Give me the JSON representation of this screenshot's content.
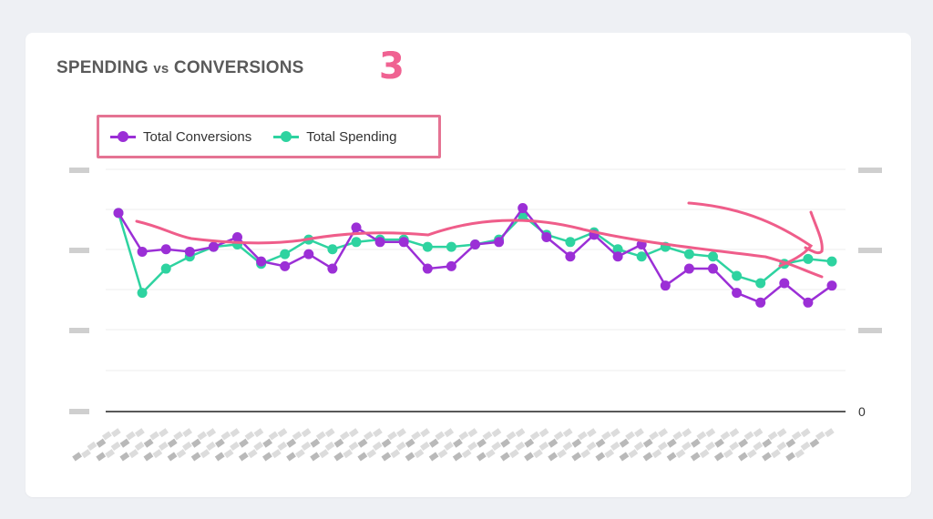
{
  "header": {
    "title_a": "SPENDING",
    "title_vs": "vs",
    "title_b": "CONVERSIONS",
    "step_badge": "3"
  },
  "colors": {
    "conversions": "#9b2fd6",
    "spending": "#2ed3a0",
    "annotation": "#ef5d8a",
    "legend_border": "#e57393"
  },
  "chart_data": {
    "type": "line",
    "title": "SPENDING vs CONVERSIONS",
    "legend_position": "top-left",
    "grid": true,
    "right_axis": {
      "tick_labels": [
        "0"
      ],
      "ylim": [
        0,
        100
      ]
    },
    "left_axis": {
      "ylim": [
        0,
        100
      ]
    },
    "series": [
      {
        "name": "Total Conversions",
        "color": "#9b2fd6",
        "axis": "left",
        "values": [
          82,
          66,
          67,
          66,
          68,
          72,
          62,
          60,
          65,
          59,
          76,
          70,
          70,
          59,
          60,
          69,
          70,
          84,
          72,
          64,
          73,
          64,
          69,
          52,
          59,
          59,
          49,
          45,
          53,
          45,
          52
        ]
      },
      {
        "name": "Total Spending",
        "color": "#2ed3a0",
        "axis": "right",
        "values": [
          82,
          49,
          59,
          64,
          68,
          69,
          61,
          65,
          71,
          67,
          70,
          71,
          71,
          68,
          68,
          69,
          71,
          81,
          73,
          70,
          74,
          67,
          64,
          68,
          65,
          64,
          56,
          53,
          61,
          63,
          62
        ]
      }
    ]
  }
}
